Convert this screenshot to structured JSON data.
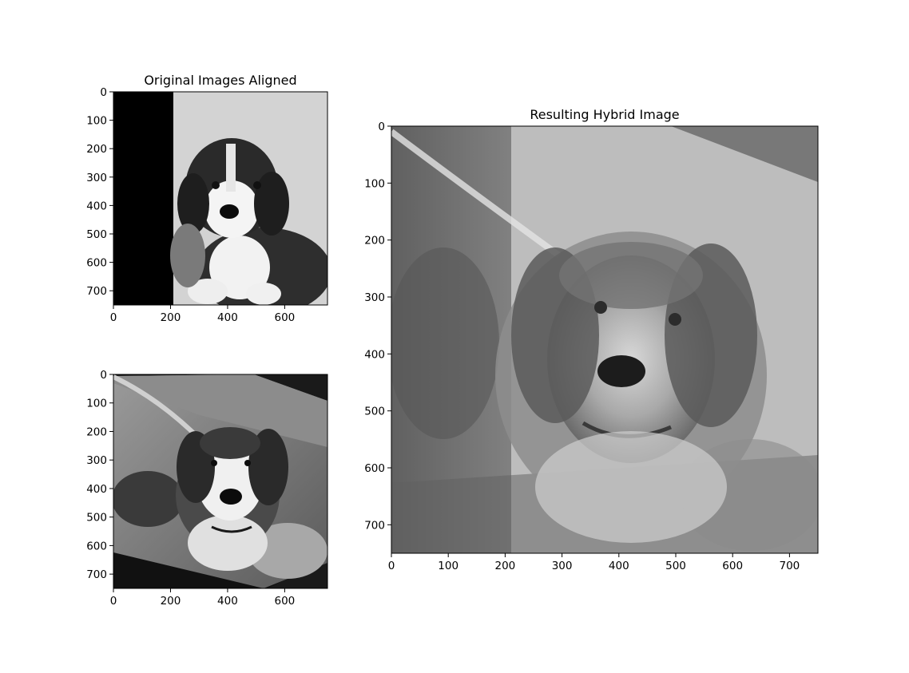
{
  "chart_data": [
    {
      "type": "image",
      "title": "Original Images Aligned",
      "content": "grayscale photo of a puppy, left strip blacked out",
      "xlim": [
        0,
        750
      ],
      "ylim": [
        750,
        0
      ],
      "xticks": [
        0,
        200,
        400,
        600
      ],
      "yticks": [
        0,
        100,
        200,
        300,
        400,
        500,
        600,
        700
      ]
    },
    {
      "type": "image",
      "title": "",
      "content": "grayscale photo of a St. Bernard dog, rotated",
      "xlim": [
        0,
        750
      ],
      "ylim": [
        750,
        0
      ],
      "xticks": [
        0,
        200,
        400,
        600
      ],
      "yticks": [
        0,
        100,
        200,
        300,
        400,
        500,
        600,
        700
      ]
    },
    {
      "type": "image",
      "title": "Resulting Hybrid Image",
      "content": "grayscale hybrid image blending puppy and St. Bernard",
      "xlim": [
        0,
        750
      ],
      "ylim": [
        750,
        0
      ],
      "xticks": [
        0,
        100,
        200,
        300,
        400,
        500,
        600,
        700
      ],
      "yticks": [
        0,
        100,
        200,
        300,
        400,
        500,
        600,
        700
      ]
    }
  ]
}
